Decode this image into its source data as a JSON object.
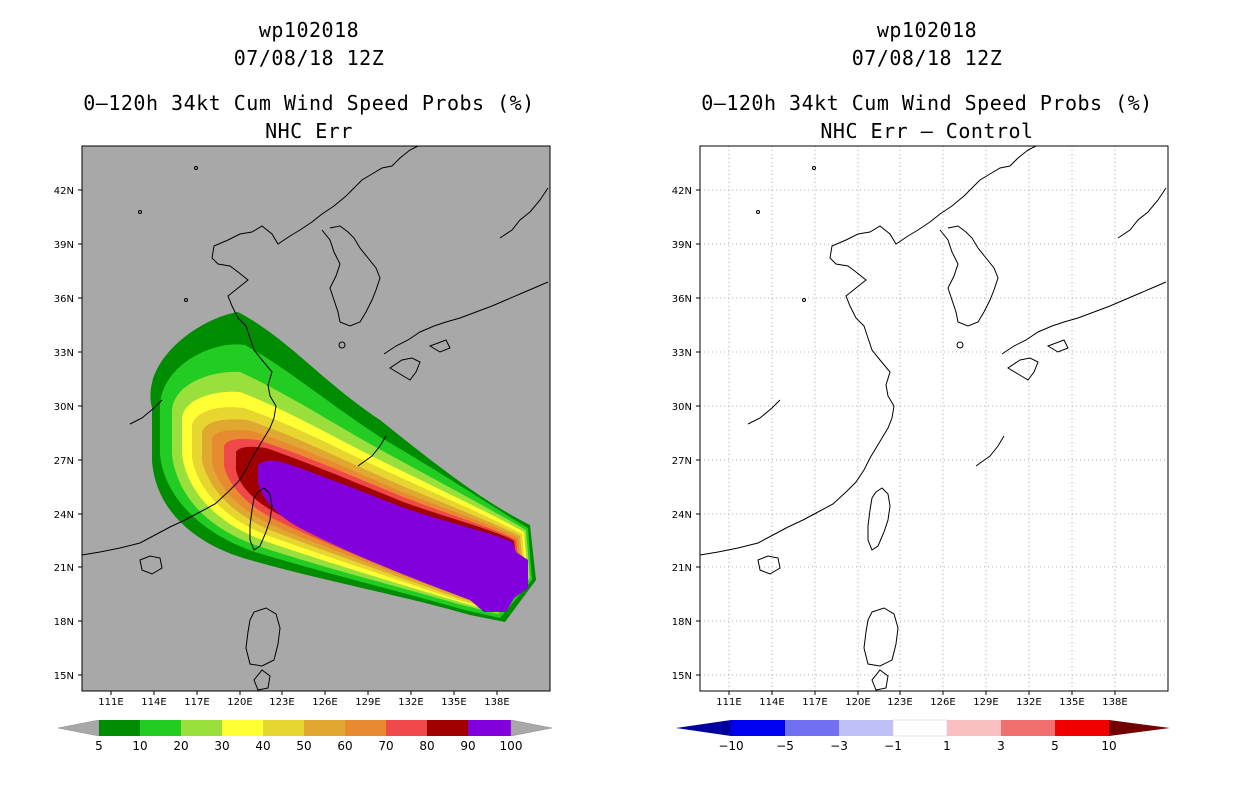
{
  "left_panel": {
    "storm_id": "wp102018",
    "datetime": "07/08/18 12Z",
    "product": "0–120h 34kt Cum Wind Speed Probs (%)",
    "subtitle": "NHC Err",
    "lat_labels": [
      "42N",
      "39N",
      "36N",
      "33N",
      "30N",
      "27N",
      "24N",
      "21N",
      "18N",
      "15N"
    ],
    "lon_labels": [
      "111E",
      "114E",
      "117E",
      "120E",
      "123E",
      "126E",
      "129E",
      "132E",
      "135E",
      "138E"
    ],
    "colorbar": {
      "labels": [
        "5",
        "10",
        "20",
        "30",
        "40",
        "50",
        "60",
        "70",
        "80",
        "90",
        "100"
      ],
      "colors": [
        "#008c00",
        "#22cc22",
        "#99e03c",
        "#ffff33",
        "#e8d630",
        "#e0a830",
        "#e88a30",
        "#f04848",
        "#a00000",
        "#8200dc"
      ],
      "end_arrow_color": "#a8a8a8"
    },
    "map_background": "#a8a8a8"
  },
  "right_panel": {
    "storm_id": "wp102018",
    "datetime": "07/08/18 12Z",
    "product": "0–120h 34kt Cum Wind Speed Probs (%)",
    "subtitle": "NHC Err – Control",
    "lat_labels": [
      "42N",
      "39N",
      "36N",
      "33N",
      "30N",
      "27N",
      "24N",
      "21N",
      "18N",
      "15N"
    ],
    "lon_labels": [
      "111E",
      "114E",
      "117E",
      "120E",
      "123E",
      "126E",
      "129E",
      "132E",
      "135E",
      "138E"
    ],
    "colorbar": {
      "labels": [
        "−10",
        "−5",
        "−3",
        "−1",
        "1",
        "3",
        "5",
        "10"
      ],
      "colors": [
        "#0000a0",
        "#0000f0",
        "#7070f0",
        "#c0c0f8",
        "#ffffff",
        "#f8c0c0",
        "#f07070",
        "#f00000",
        "#700000"
      ],
      "left_arrow_color": "#0000a0",
      "right_arrow_color": "#700000"
    },
    "map_background": "#ffffff"
  }
}
